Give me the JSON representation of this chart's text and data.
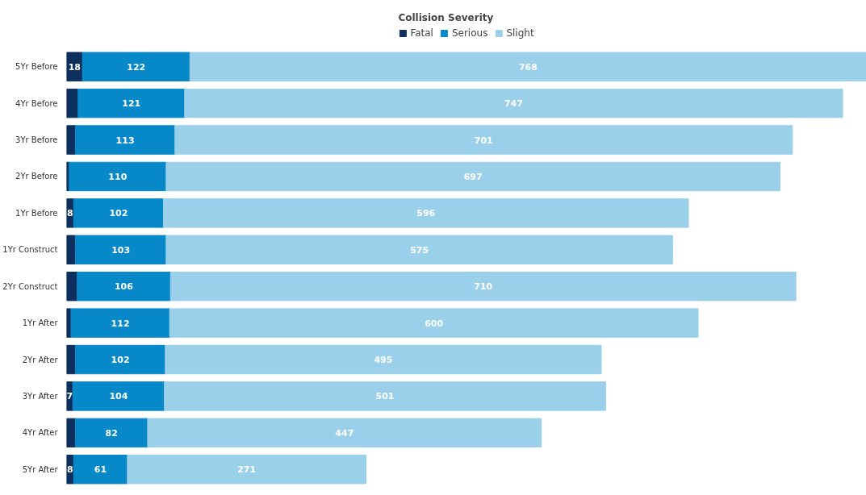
{
  "chart_data": {
    "type": "bar",
    "orientation": "horizontal",
    "stacked": true,
    "legend": "top",
    "legend_title": "Collision Severity",
    "tick_labels": "y",
    "grid": false,
    "xlim": [
      0,
      908
    ],
    "categories": [
      "5Yr Before",
      "4Yr Before",
      "3Yr Before",
      "2Yr Before",
      "1Yr Before",
      "1Yr Construct",
      "2Yr Construct",
      "1Yr After",
      "2Yr After",
      "3Yr After",
      "4Yr After",
      "5Yr After"
    ],
    "series": [
      {
        "name": "Fatal",
        "color": "#0d2f5e",
        "values": [
          18,
          13,
          10,
          3,
          8,
          10,
          12,
          5,
          10,
          7,
          10,
          8
        ],
        "value_labels": [
          "18",
          null,
          null,
          null,
          "8",
          null,
          null,
          null,
          null,
          "7",
          null,
          "8"
        ]
      },
      {
        "name": "Serious",
        "color": "#0788c8",
        "values": [
          122,
          121,
          113,
          110,
          102,
          103,
          106,
          112,
          102,
          104,
          82,
          61
        ],
        "value_labels": [
          "122",
          "121",
          "113",
          "110",
          "102",
          "103",
          "106",
          "112",
          "102",
          "104",
          "82",
          "61"
        ]
      },
      {
        "name": "Slight",
        "color": "#9bd0ea",
        "values": [
          768,
          747,
          701,
          697,
          596,
          575,
          710,
          600,
          495,
          501,
          447,
          271
        ],
        "value_labels": [
          "768",
          "747",
          "701",
          "697",
          "596",
          "575",
          "710",
          "600",
          "495",
          "501",
          "447",
          "271"
        ]
      }
    ]
  }
}
